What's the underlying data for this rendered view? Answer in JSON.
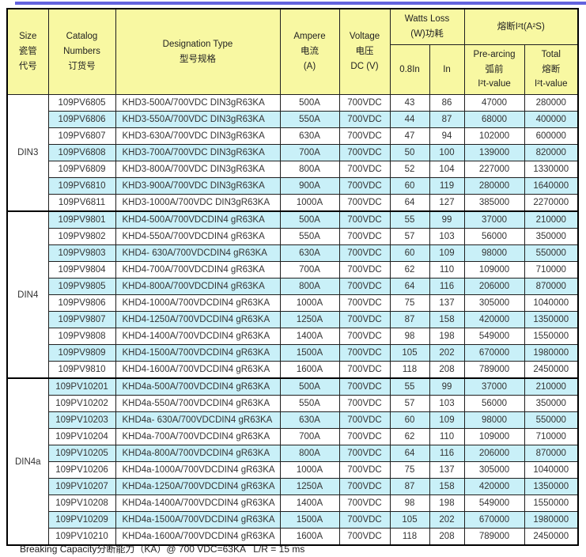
{
  "colors": {
    "top_bar": "#6363DE",
    "header_bg": "#F8F8A2",
    "row_alt_bg": "#C9F0F8",
    "row_bg": "#FFFFFF",
    "border": "#000000",
    "text": "#333333"
  },
  "table": {
    "header": {
      "size": [
        "Size",
        "瓷管",
        "代号"
      ],
      "catalog": [
        "Catalog",
        "Numbers",
        "订货号"
      ],
      "designation": [
        "Designation Type",
        "型号规格"
      ],
      "ampere": [
        "Ampere",
        "电流",
        "(A)"
      ],
      "voltage": [
        "Voltage",
        "电压",
        "DC (V)"
      ],
      "watts_loss": [
        "Watts Loss",
        "(W)功耗"
      ],
      "watts_08in": "0.8In",
      "watts_in": "In",
      "i2t_group": "熔断I²t(A²S)",
      "prearcing": [
        "Pre-arcing",
        "弧前",
        "I²t-value"
      ],
      "total": [
        "Total",
        "熔断",
        "I²t-value"
      ]
    },
    "groups": [
      {
        "size": "DIN3",
        "rows": [
          [
            "109PV6805",
            "KHD3-500A/700VDC DIN3gR63KA",
            "500A",
            "700VDC",
            "43",
            "86",
            "47000",
            "280000"
          ],
          [
            "109PV6806",
            "KHD3-550A/700VDC DIN3gR63KA",
            "550A",
            "700VDC",
            "44",
            "87",
            "68000",
            "400000"
          ],
          [
            "109PV6807",
            "KHD3-630A/700VDC DIN3gR63KA",
            "630A",
            "700VDC",
            "47",
            "94",
            "102000",
            "600000"
          ],
          [
            "109PV6808",
            "KHD3-700A/700VDC DIN3gR63KA",
            "700A",
            "700VDC",
            "50",
            "100",
            "139000",
            "820000"
          ],
          [
            "109PV6809",
            "KHD3-800A/700VDC DIN3gR63KA",
            "800A",
            "700VDC",
            "52",
            "104",
            "227000",
            "1330000"
          ],
          [
            "109PV6810",
            "KHD3-900A/700VDC DIN3gR63KA",
            "900A",
            "700VDC",
            "60",
            "119",
            "280000",
            "1640000"
          ],
          [
            "109PV6811",
            "KHD3-1000A/700VDC DIN3gR63KA",
            "1000A",
            "700VDC",
            "64",
            "127",
            "385000",
            "2270000"
          ]
        ]
      },
      {
        "size": "DIN4",
        "rows": [
          [
            "109PV9801",
            "KHD4-500A/700VDCDIN4 gR63KA",
            "500A",
            "700VDC",
            "55",
            "99",
            "37000",
            "210000"
          ],
          [
            "109PV9802",
            "KHD4-550A/700VDCDIN4 gR63KA",
            "550A",
            "700VDC",
            "57",
            "103",
            "56000",
            "350000"
          ],
          [
            "109PV9803",
            "KHD4- 630A/700VDCDIN4 gR63KA",
            "630A",
            "700VDC",
            "60",
            "109",
            "98000",
            "550000"
          ],
          [
            "109PV9804",
            "KHD4-700A/700VDCDIN4 gR63KA",
            "700A",
            "700VDC",
            "62",
            "110",
            "109000",
            "710000"
          ],
          [
            "109PV9805",
            "KHD4-800A/700VDCDIN4 gR63KA",
            "800A",
            "700VDC",
            "64",
            "116",
            "206000",
            "870000"
          ],
          [
            "109PV9806",
            "KHD4-1000A/700VDCDIN4 gR63KA",
            "1000A",
            "700VDC",
            "75",
            "137",
            "305000",
            "1040000"
          ],
          [
            "109PV9807",
            "KHD4-1250A/700VDCDIN4 gR63KA",
            "1250A",
            "700VDC",
            "87",
            "158",
            "420000",
            "1350000"
          ],
          [
            "109PV9808",
            "KHD4-1400A/700VDCDIN4 gR63KA",
            "1400A",
            "700VDC",
            "98",
            "198",
            "549000",
            "1550000"
          ],
          [
            "109PV9809",
            "KHD4-1500A/700VDCDIN4 gR63KA",
            "1500A",
            "700VDC",
            "105",
            "202",
            "670000",
            "1980000"
          ],
          [
            "109PV9810",
            "KHD4-1600A/700VDCDIN4 gR63KA",
            "1600A",
            "700VDC",
            "118",
            "208",
            "789000",
            "2450000"
          ]
        ]
      },
      {
        "size": "DIN4a",
        "rows": [
          [
            "109PV10201",
            "KHD4a-500A/700VDCDIN4 gR63KA",
            "500A",
            "700VDC",
            "55",
            "99",
            "37000",
            "210000"
          ],
          [
            "109PV10202",
            "KHD4a-550A/700VDCDIN4 gR63KA",
            "550A",
            "700VDC",
            "57",
            "103",
            "56000",
            "350000"
          ],
          [
            "109PV10203",
            "KHD4a- 630A/700VDCDIN4 gR63KA",
            "630A",
            "700VDC",
            "60",
            "109",
            "98000",
            "550000"
          ],
          [
            "109PV10204",
            "KHD4a-700A/700VDCDIN4 gR63KA",
            "700A",
            "700VDC",
            "62",
            "110",
            "109000",
            "710000"
          ],
          [
            "109PV10205",
            "KHD4a-800A/700VDCDIN4 gR63KA",
            "800A",
            "700VDC",
            "64",
            "116",
            "206000",
            "870000"
          ],
          [
            "109PV10206",
            "KHD4a-1000A/700VDCDIN4 gR63KA",
            "1000A",
            "700VDC",
            "75",
            "137",
            "305000",
            "1040000"
          ],
          [
            "109PV10207",
            "KHD4a-1250A/700VDCDIN4 gR63KA",
            "1250A",
            "700VDC",
            "87",
            "158",
            "420000",
            "1350000"
          ],
          [
            "109PV10208",
            "KHD4a-1400A/700VDCDIN4 gR63KA",
            "1400A",
            "700VDC",
            "98",
            "198",
            "549000",
            "1550000"
          ],
          [
            "109PV10209",
            "KHD4a-1500A/700VDCDIN4 gR63KA",
            "1500A",
            "700VDC",
            "105",
            "202",
            "670000",
            "1980000"
          ],
          [
            "109PV10210",
            "KHD4a-1600A/700VDCDIN4 gR63KA",
            "1600A",
            "700VDC",
            "118",
            "208",
            "789000",
            "2450000"
          ]
        ]
      }
    ]
  },
  "footer": {
    "note": "Breaking Capacity分断能力（KA）@ 700 VDC=63KA   L/R = 15 ms"
  }
}
